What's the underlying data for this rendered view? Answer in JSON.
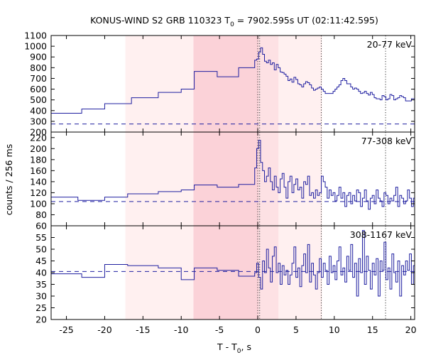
{
  "title": {
    "main": "KONUS-WIND S2 GRB 110323 T",
    "sub": "0",
    "rest": " = 7902.595s UT (02:11:42.595)"
  },
  "ylabel": "counts / 256 ms",
  "xlabel": {
    "main": "T - T",
    "sub": "0",
    "rest": ", s"
  },
  "colors": {
    "series": "#1f1fa0",
    "light_band": "#fff0f0",
    "mid_band": "#fde1e4",
    "dark_band": "#fbd2d8",
    "axis": "#000000"
  },
  "chart_data": {
    "type": "line",
    "xlim": [
      -27,
      20.5
    ],
    "xticks": [
      -25,
      -20,
      -15,
      -10,
      -5,
      0,
      5,
      10,
      15,
      20
    ],
    "xtick_labels": [
      "-25",
      "-20",
      "-15",
      "-10",
      "-5",
      "0",
      "5",
      "10",
      "15",
      "20"
    ],
    "shaded_regions": [
      {
        "x0": -17.3,
        "x1": 8.4,
        "shade": "light"
      },
      {
        "x0": -8.4,
        "x1": 2.7,
        "shade": "mid"
      },
      {
        "x0": -8.4,
        "x1": 0.1,
        "shade": "dark"
      }
    ],
    "vertical_lines": [
      {
        "x": 0,
        "style": "dotted"
      },
      {
        "x": 0.25,
        "style": "dotted"
      },
      {
        "x": 8.3,
        "style": "dotted"
      },
      {
        "x": 16.7,
        "style": "dotted"
      }
    ],
    "panels": [
      {
        "label": "20-77 keV",
        "ylim": [
          200,
          1100
        ],
        "yticks": [
          200,
          300,
          400,
          500,
          600,
          700,
          800,
          900,
          1000,
          1100
        ],
        "ytick_labels": [
          "200",
          "300",
          "400",
          "500",
          "600",
          "700",
          "800",
          "900",
          "1000",
          "1100"
        ],
        "background": 275,
        "steps": [
          {
            "x0": -27,
            "x1": -23,
            "y": 375
          },
          {
            "x0": -23,
            "x1": -20,
            "y": 415
          },
          {
            "x0": -20,
            "x1": -16.5,
            "y": 465
          },
          {
            "x0": -16.5,
            "x1": -13,
            "y": 520
          },
          {
            "x0": -13,
            "x1": -10,
            "y": 570
          },
          {
            "x0": -10,
            "x1": -8.3,
            "y": 600
          },
          {
            "x0": -8.3,
            "x1": -5.3,
            "y": 765
          },
          {
            "x0": -5.3,
            "x1": -2.5,
            "y": 715
          },
          {
            "x0": -2.5,
            "x1": -0.4,
            "y": 800
          }
        ],
        "fine_bin": 0.256,
        "fine_start": -0.4,
        "fine": [
          870,
          880,
          945,
          985,
          925,
          860,
          845,
          870,
          830,
          845,
          780,
          830,
          800,
          760,
          755,
          740,
          720,
          680,
          695,
          665,
          710,
          690,
          650,
          640,
          620,
          650,
          670,
          660,
          640,
          610,
          590,
          600,
          610,
          620,
          600,
          580,
          560,
          560,
          560,
          560,
          580,
          600,
          620,
          640,
          680,
          700,
          680,
          650,
          650,
          620,
          600,
          610,
          600,
          580,
          560,
          565,
          580,
          560,
          545,
          570,
          550,
          520,
          510,
          510,
          500,
          540,
          530,
          500,
          510,
          550,
          540,
          500,
          510,
          520,
          540,
          530,
          520,
          490,
          490,
          490,
          510,
          510,
          515,
          510,
          540,
          520,
          560,
          530,
          500,
          470,
          460,
          460,
          430,
          460,
          480,
          450,
          440,
          460,
          450,
          470,
          430,
          440,
          420,
          460,
          450,
          460,
          470,
          480,
          500,
          470,
          490,
          520,
          540,
          560,
          580
        ]
      },
      {
        "label": "77-308 keV",
        "ylim": [
          60,
          230
        ],
        "yticks": [
          60,
          80,
          100,
          120,
          140,
          160,
          180,
          200,
          220
        ],
        "ytick_labels": [
          "60",
          "80",
          "100",
          "120",
          "140",
          "160",
          "180",
          "200",
          "220"
        ],
        "background": 104,
        "steps": [
          {
            "x0": -27,
            "x1": -23.5,
            "y": 112
          },
          {
            "x0": -23.5,
            "x1": -20,
            "y": 106
          },
          {
            "x0": -20,
            "x1": -17,
            "y": 112
          },
          {
            "x0": -17,
            "x1": -13,
            "y": 118
          },
          {
            "x0": -13,
            "x1": -10,
            "y": 122
          },
          {
            "x0": -10,
            "x1": -8.3,
            "y": 125
          },
          {
            "x0": -8.3,
            "x1": -5.3,
            "y": 134
          },
          {
            "x0": -5.3,
            "x1": -2.5,
            "y": 130
          },
          {
            "x0": -2.5,
            "x1": -0.4,
            "y": 135
          }
        ],
        "fine_bin": 0.256,
        "fine_start": -0.4,
        "fine": [
          165,
          200,
          215,
          175,
          160,
          140,
          150,
          165,
          140,
          125,
          150,
          130,
          120,
          145,
          155,
          130,
          110,
          140,
          150,
          120,
          135,
          145,
          125,
          130,
          110,
          140,
          135,
          150,
          115,
          120,
          110,
          125,
          115,
          120,
          150,
          140,
          130,
          110,
          125,
          115,
          120,
          105,
          115,
          130,
          110,
          120,
          95,
          115,
          120,
          100,
          115,
          105,
          125,
          120,
          95,
          110,
          125,
          105,
          90,
          110,
          115,
          100,
          125,
          110,
          105,
          95,
          120,
          115,
          100,
          110,
          105,
          115,
          130,
          95,
          115,
          110,
          100,
          105,
          125,
          110,
          95,
          110,
          115,
          105,
          100,
          120,
          115,
          95,
          125,
          110,
          100,
          110,
          90,
          105,
          115,
          100,
          120,
          105,
          110,
          95,
          105,
          110,
          100,
          108,
          112,
          103,
          108,
          105,
          110,
          100,
          108,
          104,
          112,
          125,
          108
        ]
      },
      {
        "label": "308-1167 keV",
        "ylim": [
          20,
          60
        ],
        "yticks": [
          20,
          25,
          30,
          35,
          40,
          45,
          50,
          55
        ],
        "ytick_labels": [
          "20",
          "25",
          "30",
          "35",
          "40",
          "45",
          "50",
          "55"
        ],
        "background": 40.5,
        "steps": [
          {
            "x0": -27,
            "x1": -23,
            "y": 39.5
          },
          {
            "x0": -23,
            "x1": -20,
            "y": 38
          },
          {
            "x0": -20,
            "x1": -17,
            "y": 43.5
          },
          {
            "x0": -17,
            "x1": -13,
            "y": 43
          },
          {
            "x0": -13,
            "x1": -10,
            "y": 42
          },
          {
            "x0": -10,
            "x1": -8.3,
            "y": 37
          },
          {
            "x0": -8.3,
            "x1": -5.3,
            "y": 42
          },
          {
            "x0": -5.3,
            "x1": -2.5,
            "y": 41
          },
          {
            "x0": -2.5,
            "x1": -0.4,
            "y": 38.5
          }
        ],
        "fine_bin": 0.256,
        "fine_start": -0.4,
        "fine": [
          40,
          44,
          38,
          33,
          45,
          40,
          50,
          42,
          36,
          47,
          51,
          40,
          44,
          35,
          43,
          39,
          41,
          35,
          39,
          44,
          51,
          38,
          42,
          34,
          43,
          48,
          40,
          52,
          36,
          44,
          39,
          33,
          40,
          46,
          38,
          44,
          41,
          35,
          47,
          40,
          43,
          37,
          45,
          51,
          39,
          42,
          36,
          47,
          41,
          52,
          38,
          44,
          30,
          46,
          40,
          58,
          35,
          47,
          41,
          33,
          44,
          39,
          46,
          30,
          45,
          41,
          53,
          37,
          42,
          33,
          48,
          40,
          36,
          45,
          30,
          43,
          39,
          45,
          41,
          48,
          35,
          43,
          38,
          46,
          32,
          44,
          40,
          46,
          38,
          49,
          36,
          43,
          40,
          34,
          45,
          38,
          47,
          41,
          37,
          35,
          45,
          39,
          52,
          42,
          36,
          44,
          38,
          42,
          47,
          35,
          40,
          43,
          38,
          45,
          42
        ]
      }
    ]
  }
}
